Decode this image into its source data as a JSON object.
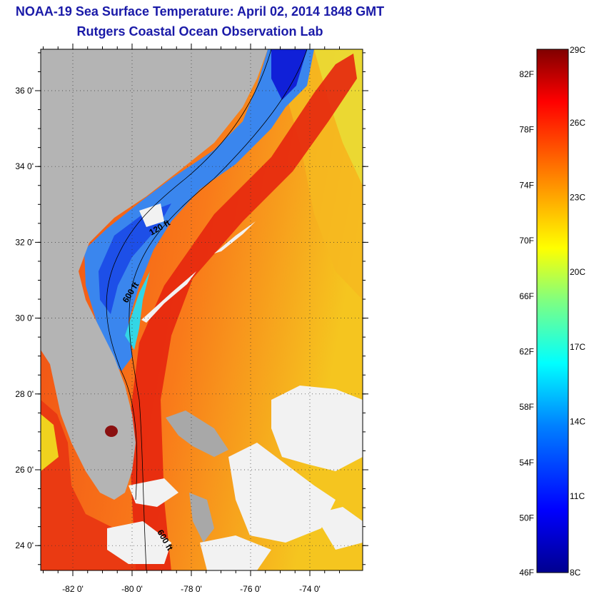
{
  "header": {
    "title": "NOAA-19 Sea Surface Temperature:  April 02, 2014 1848 GMT",
    "subtitle": "Rutgers Coastal Ocean Observation Lab"
  },
  "map": {
    "lat_labels": [
      "36 0'",
      "34 0'",
      "32 0'",
      "30 0'",
      "28 0'",
      "26 0'",
      "24 0'"
    ],
    "lat_values": [
      36,
      34,
      32,
      30,
      28,
      26,
      24
    ],
    "lon_labels": [
      "-82 0'",
      "-80 0'",
      "-78 0'",
      "-76 0'",
      "-74 0'"
    ],
    "lon_values": [
      -82,
      -80,
      -78,
      -76,
      -74
    ],
    "contour_labels": [
      "120 ft",
      "600 ft",
      "600 ft"
    ],
    "colors": {
      "land": "#b4b4b4",
      "cloud": "#f2f2f2",
      "gulf_stream": "#e83a12",
      "offshore": "#f9941c",
      "shelf": "#2d7cf2"
    }
  },
  "colorbar": {
    "fahrenheit_labels": [
      "82F",
      "78F",
      "74F",
      "70F",
      "66F",
      "62F",
      "58F",
      "54F",
      "50F",
      "46F"
    ],
    "celsius_labels": [
      "29C",
      "26C",
      "23C",
      "20C",
      "17C",
      "14C",
      "11C",
      "8C"
    ],
    "colors": [
      "#00008f",
      "#0000ff",
      "#0080ff",
      "#00ffff",
      "#80ff80",
      "#ffff00",
      "#ff8000",
      "#ff0000",
      "#800000"
    ]
  }
}
